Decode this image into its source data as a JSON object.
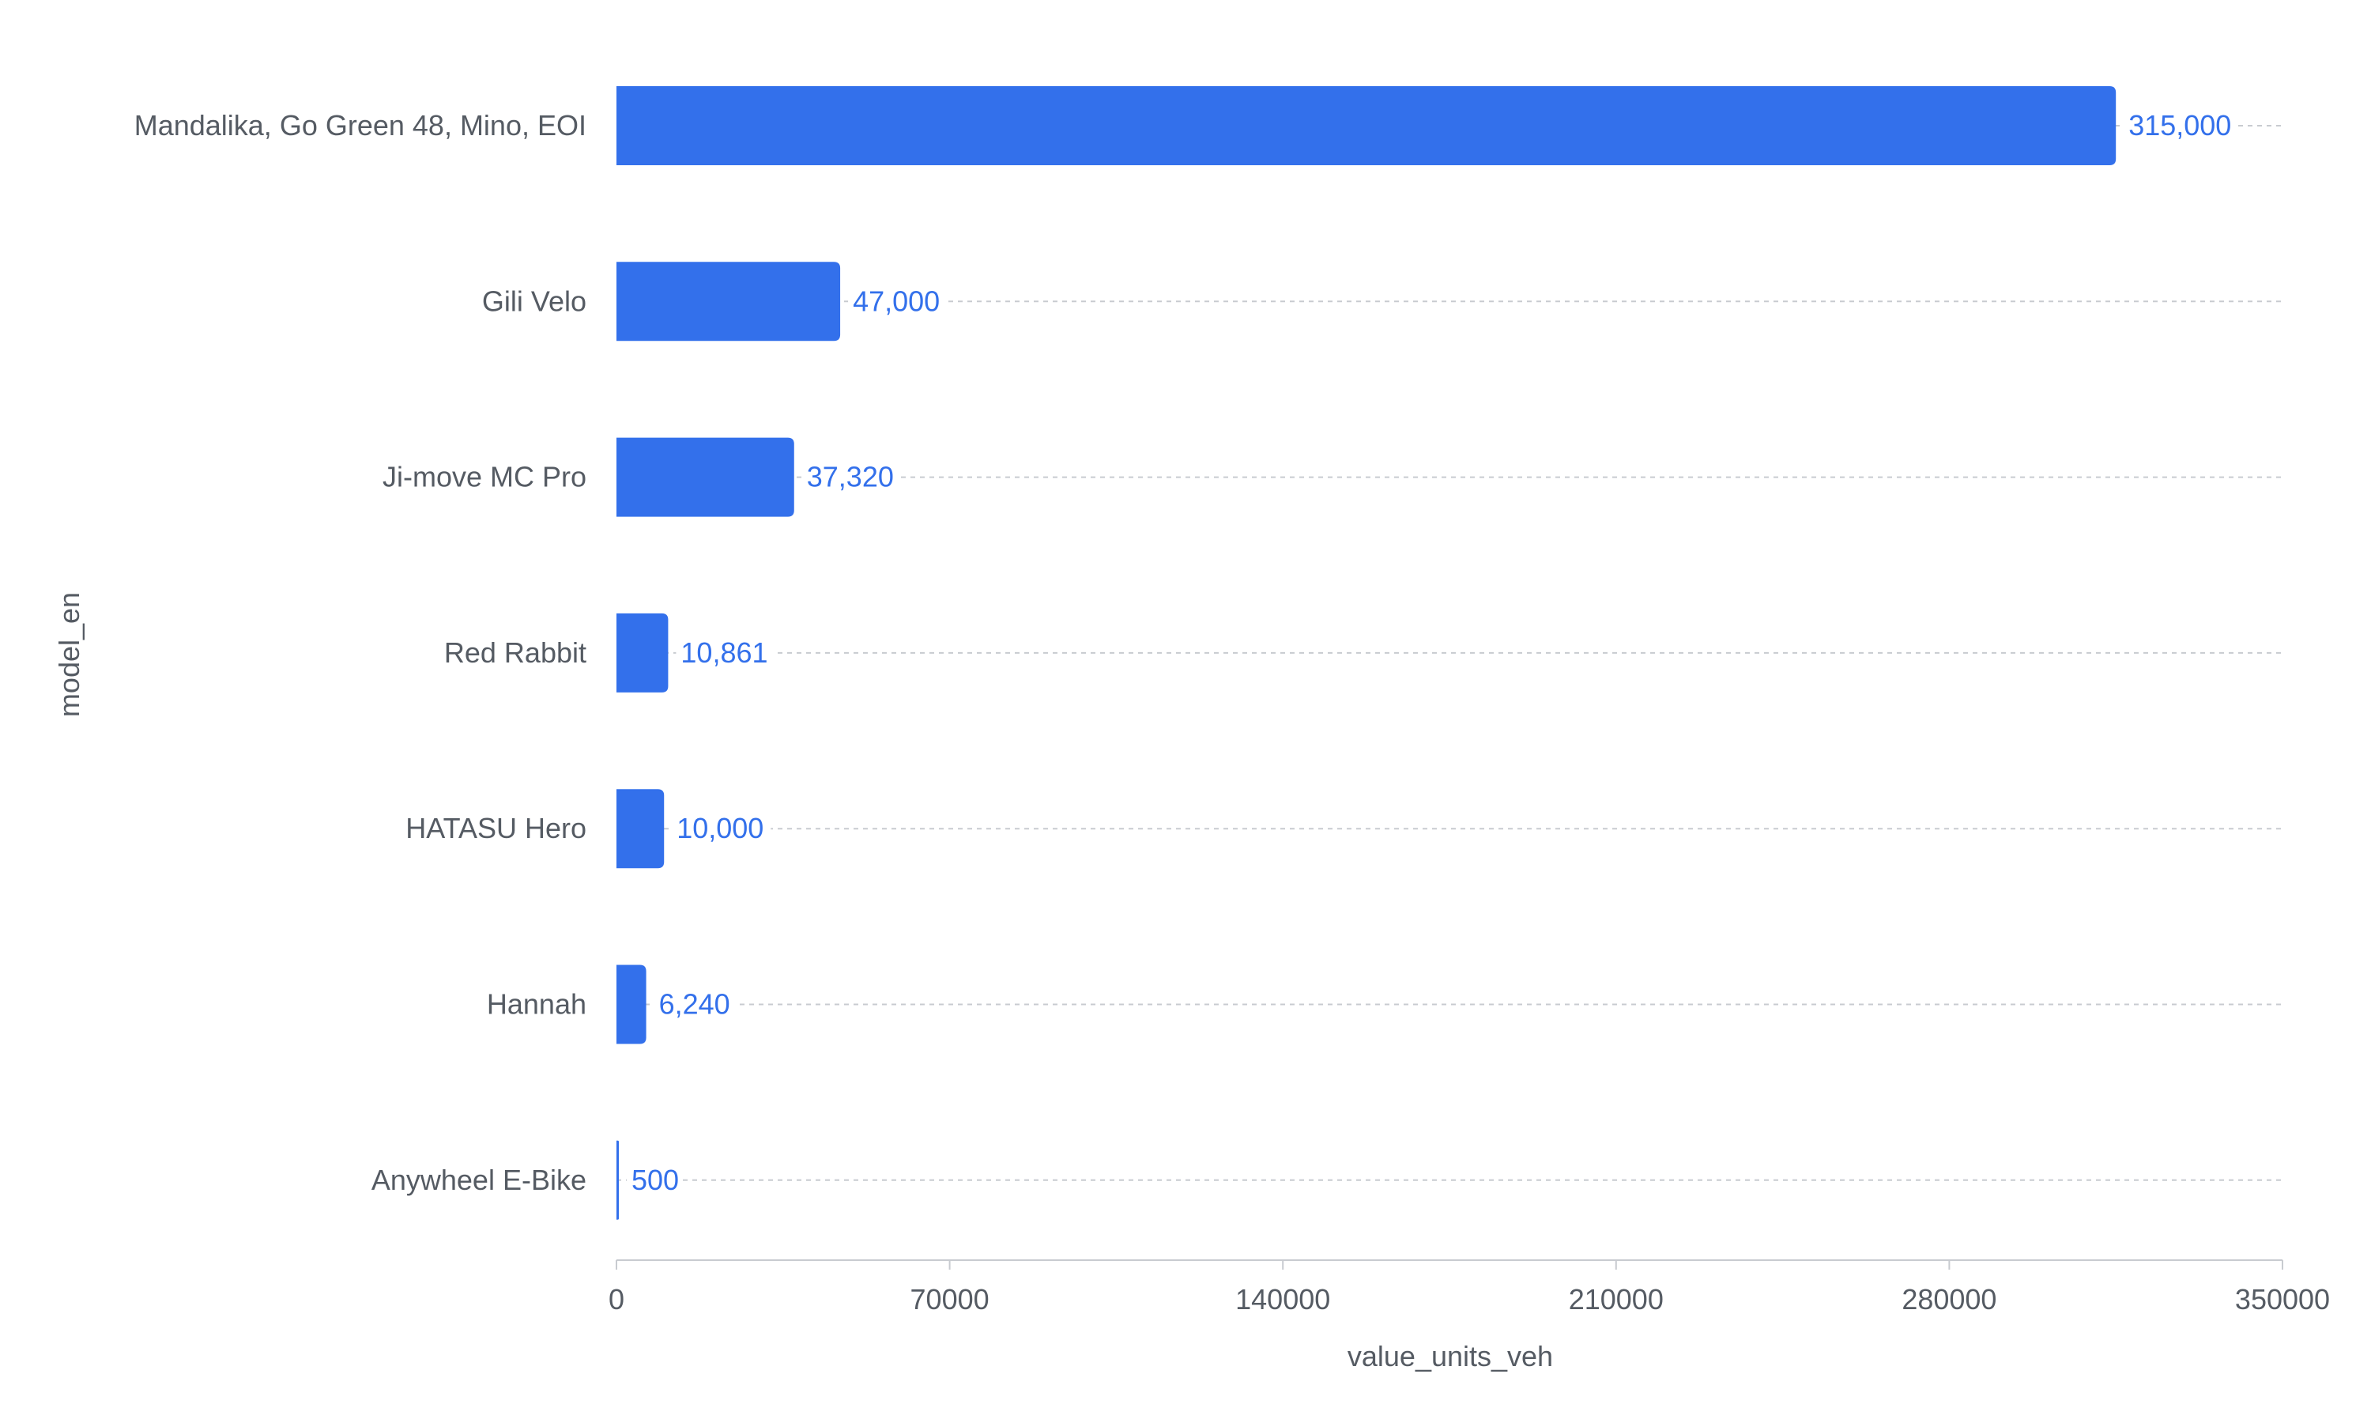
{
  "chart_data": {
    "type": "bar",
    "orientation": "horizontal",
    "categories": [
      "Mandalika, Go Green 48, Mino, EOI",
      "Gili Velo",
      "Ji-move MC Pro",
      "Red Rabbit",
      "HATASU Hero",
      "Hannah",
      "Anywheel E-Bike"
    ],
    "values": [
      315000,
      47000,
      37320,
      10861,
      10000,
      6240,
      500
    ],
    "value_labels": [
      "315,000",
      "47,000",
      "37,320",
      "10,861",
      "10,000",
      "6,240",
      "500"
    ],
    "xlabel": "value_units_veh",
    "ylabel": "model_en",
    "xlim": [
      0,
      350000
    ],
    "xticks": [
      0,
      70000,
      140000,
      210000,
      280000,
      350000
    ],
    "xtick_labels": [
      "0",
      "70000",
      "140000",
      "210000",
      "280000",
      "350000"
    ],
    "grid": "dashed horizontal per category",
    "colors": {
      "bar": "#3370eb",
      "label": "#3370eb",
      "text": "#555b63",
      "grid": "#c8cbd0",
      "axis": "#c8cbd0"
    }
  }
}
